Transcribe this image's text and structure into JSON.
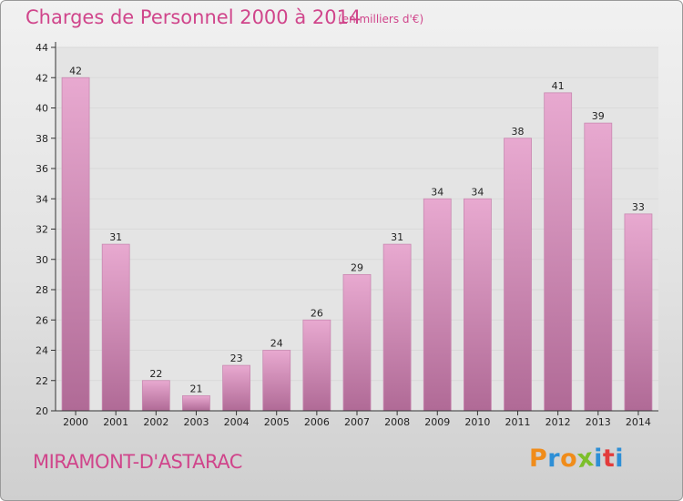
{
  "header": {
    "title": "Charges de Personnel 2000 à 2014",
    "subtitle": "(en milliers d'€)"
  },
  "footer": {
    "commune": "MIRAMONT-D'ASTARAC",
    "logo_letters": [
      "P",
      "r",
      "o",
      "x",
      "i",
      "t",
      "i"
    ],
    "logo_colors": [
      "#f08c1a",
      "#2e8fd6",
      "#f08c1a",
      "#7cbf2a",
      "#2e8fd6",
      "#e23b3b",
      "#2e8fd6"
    ]
  },
  "colors": {
    "bar_top": "#e8a9d0",
    "bar_bottom": "#b06a96",
    "bar_edge": "#c889b1",
    "axis": "#333333",
    "grid": "#d9d9d9",
    "plot_bg": "#e4e4e4",
    "accent": "#d0458b"
  },
  "chart_data": {
    "type": "bar",
    "title": "Charges de Personnel 2000 à 2014",
    "subtitle": "(en milliers d'€)",
    "categories": [
      "2000",
      "2001",
      "2002",
      "2003",
      "2004",
      "2005",
      "2006",
      "2007",
      "2008",
      "2009",
      "2010",
      "2011",
      "2012",
      "2013",
      "2014"
    ],
    "values": [
      42,
      31,
      22,
      21,
      23,
      24,
      26,
      29,
      31,
      34,
      34,
      38,
      41,
      39,
      33
    ],
    "data_labels": [
      "42",
      "31",
      "22",
      "21",
      "23",
      "24",
      "26",
      "29",
      "31",
      "34",
      "34",
      "38",
      "41",
      "39",
      "33"
    ],
    "ylim": [
      20,
      44
    ],
    "yticks": [
      "20",
      "22",
      "24",
      "26",
      "28",
      "30",
      "32",
      "34",
      "36",
      "38",
      "40",
      "42",
      "44"
    ],
    "grid": true,
    "legend": "none"
  }
}
